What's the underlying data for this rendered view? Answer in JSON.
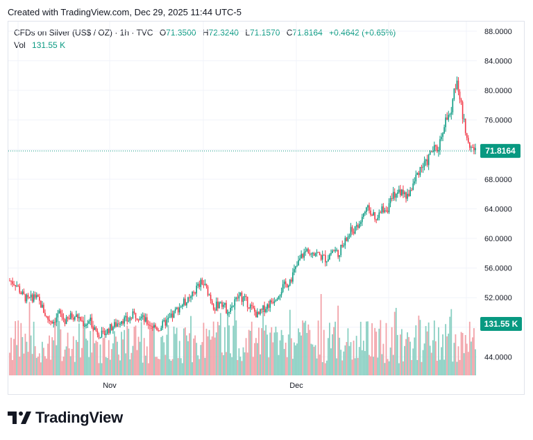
{
  "header": {
    "created_text": "Created with TradingView.com, Dec 29, 2025 11:44 UTC-5"
  },
  "legend": {
    "symbol": "CFDs on Silver (US$ / OZ) · 1h · TVC",
    "o_label": "O",
    "o_value": "71.3500",
    "h_label": "H",
    "h_value": "72.3240",
    "l_label": "L",
    "l_value": "71.1570",
    "c_label": "C",
    "c_value": "71.8164",
    "change": "+0.4642 (+0.65%)",
    "vol_label": "Vol",
    "vol_value": "131.55 K"
  },
  "last_price_label": "71.8164",
  "last_volume_label": "131.55 K",
  "brand": "TradingView",
  "colors": {
    "up": "#089981",
    "down": "#f23645",
    "up_vol": "#89cfc2",
    "down_vol": "#f2a2a8",
    "grid": "#f0f3fa",
    "axis_text": "#131722"
  },
  "chart_data": {
    "type": "candlestick",
    "interval": "1h",
    "y_axis": {
      "side": "right",
      "ylim": [
        41.5,
        89.3
      ],
      "ticks": [
        "44.0000",
        "48.0000",
        "52.0000",
        "56.0000",
        "60.0000",
        "64.0000",
        "68.0000",
        "72.0000",
        "76.0000",
        "80.0000",
        "84.0000",
        "88.0000"
      ]
    },
    "x_axis": {
      "tick_labels": [
        "Nov",
        "Dec"
      ]
    },
    "price_path": [
      [
        0,
        54.3
      ],
      [
        1,
        53.9
      ],
      [
        2,
        52.4
      ],
      [
        3,
        51.6
      ],
      [
        4,
        52.3
      ],
      [
        5,
        51.1
      ],
      [
        6,
        49.2
      ],
      [
        7,
        48.8
      ],
      [
        8,
        49.9
      ],
      [
        9,
        48.7
      ],
      [
        10,
        49.6
      ],
      [
        11,
        49.4
      ],
      [
        12,
        48.4
      ],
      [
        13,
        48.8
      ],
      [
        14,
        47.4
      ],
      [
        15,
        46.9
      ],
      [
        16,
        47.8
      ],
      [
        17,
        48.3
      ],
      [
        18,
        49.1
      ],
      [
        19,
        48.9
      ],
      [
        20,
        49.7
      ],
      [
        21,
        49.5
      ],
      [
        22,
        48.7
      ],
      [
        23,
        48.2
      ],
      [
        24,
        47.8
      ],
      [
        25,
        48.6
      ],
      [
        26,
        49.3
      ],
      [
        27,
        50.5
      ],
      [
        28,
        51.3
      ],
      [
        29,
        51.6
      ],
      [
        30,
        53.2
      ],
      [
        31,
        54.1
      ],
      [
        32,
        52.7
      ],
      [
        33,
        50.6
      ],
      [
        34,
        51.6
      ],
      [
        35,
        50.3
      ],
      [
        36,
        51.1
      ],
      [
        37,
        52.3
      ],
      [
        38,
        51.6
      ],
      [
        39,
        50.5
      ],
      [
        40,
        49.5
      ],
      [
        41,
        50.6
      ],
      [
        42,
        51.3
      ],
      [
        43,
        52.3
      ],
      [
        44,
        53.4
      ],
      [
        45,
        54.2
      ],
      [
        46,
        55.8
      ],
      [
        47,
        57.6
      ],
      [
        48,
        58.5
      ],
      [
        49,
        58.3
      ],
      [
        50,
        57.6
      ],
      [
        51,
        57.2
      ],
      [
        52,
        58.4
      ],
      [
        53,
        58.1
      ],
      [
        54,
        59.5
      ],
      [
        55,
        61.0
      ],
      [
        56,
        61.3
      ],
      [
        57,
        63.4
      ],
      [
        58,
        64.0
      ],
      [
        59,
        62.1
      ],
      [
        60,
        64.0
      ],
      [
        61,
        64.2
      ],
      [
        62,
        66.1
      ],
      [
        63,
        66.3
      ],
      [
        64,
        65.6
      ],
      [
        65,
        67.3
      ],
      [
        66,
        69.5
      ],
      [
        67,
        70.0
      ],
      [
        68,
        71.9
      ],
      [
        69,
        72.1
      ],
      [
        70,
        75.7
      ],
      [
        71,
        76.6
      ],
      [
        72,
        82.0
      ],
      [
        73,
        76.0
      ],
      [
        74,
        73.0
      ],
      [
        75,
        71.8
      ]
    ],
    "volume_range": {
      "min_k": 0,
      "max_k": 180
    },
    "last_close": 71.8164,
    "last_volume_k": 131.55
  }
}
